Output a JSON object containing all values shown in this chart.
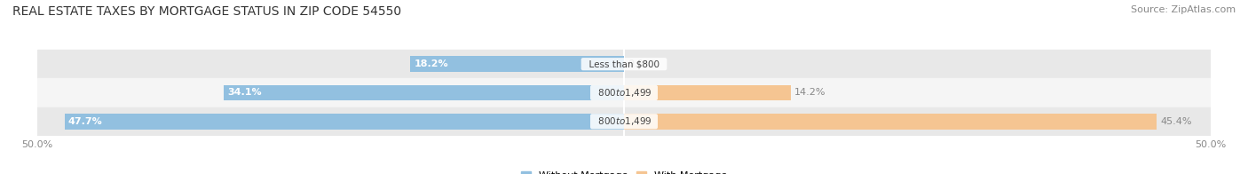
{
  "title": "REAL ESTATE TAXES BY MORTGAGE STATUS IN ZIP CODE 54550",
  "source": "Source: ZipAtlas.com",
  "rows": [
    {
      "label": "Less than $800",
      "without_mortgage": 18.2,
      "with_mortgage": 0.0
    },
    {
      "label": "$800 to $1,499",
      "without_mortgage": 34.1,
      "with_mortgage": 14.2
    },
    {
      "label": "$800 to $1,499",
      "without_mortgage": 47.7,
      "with_mortgage": 45.4
    }
  ],
  "max_value": 50.0,
  "color_without": "#92c0e0",
  "color_with": "#f5c592",
  "bar_bg_color": "#f0f0f0",
  "bar_height": 0.55,
  "row_bg_colors": [
    "#e8e8e8",
    "#f5f5f5",
    "#e8e8e8"
  ],
  "title_fontsize": 10,
  "source_fontsize": 8,
  "label_fontsize": 8,
  "tick_fontsize": 8,
  "legend_fontsize": 8
}
